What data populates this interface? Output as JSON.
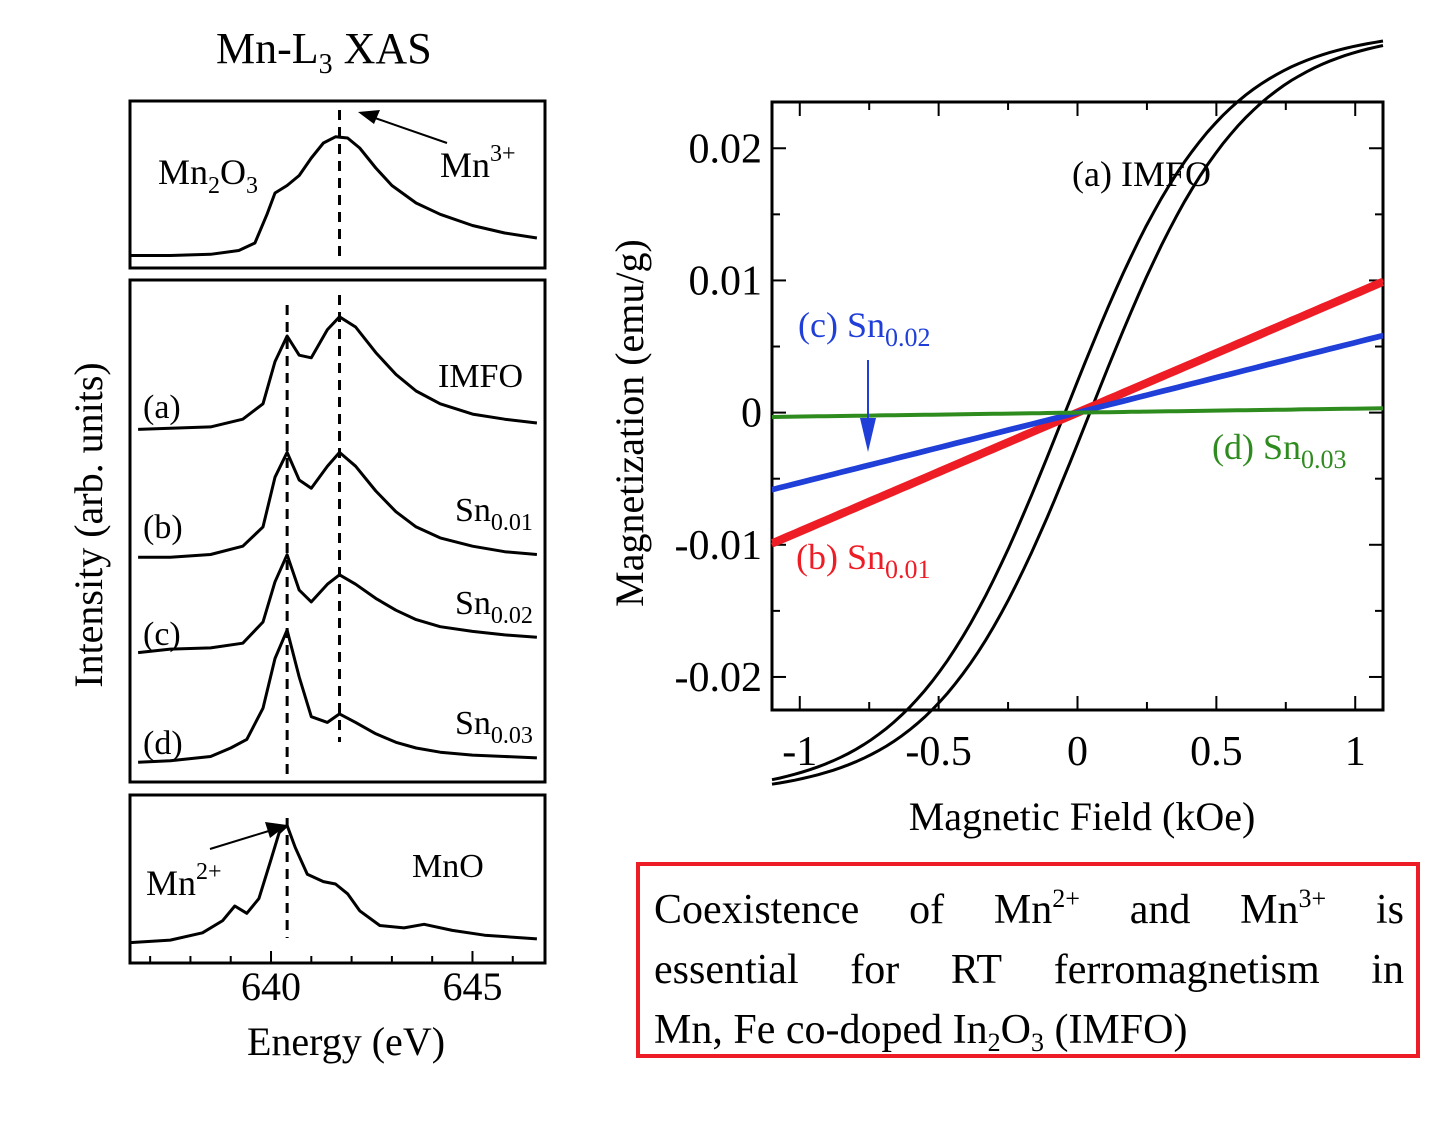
{
  "chart_data": [
    {
      "type": "line",
      "title": "Mn-L₃ XAS",
      "xlabel": "Energy (eV)",
      "ylabel": "Intensity (arb. units)",
      "xlim": [
        636.5,
        646.8
      ],
      "xticks": [
        "640",
        "645"
      ],
      "panels": [
        {
          "name": "Mn2O3 reference",
          "label": "Mn₂O₃",
          "annotation": "Mn³⁺",
          "peak_marker_eV": 641.7,
          "series": [
            {
              "name": "Mn₂O₃",
              "x": [
                636.5,
                637.5,
                638.5,
                639.2,
                639.6,
                639.9,
                640.1,
                640.4,
                640.7,
                641.0,
                641.3,
                641.6,
                641.9,
                642.2,
                642.6,
                643.0,
                643.6,
                644.2,
                645.0,
                645.8,
                646.6
              ],
              "y": [
                0.02,
                0.02,
                0.03,
                0.06,
                0.12,
                0.35,
                0.52,
                0.58,
                0.66,
                0.8,
                0.92,
                0.97,
                0.96,
                0.88,
                0.72,
                0.58,
                0.44,
                0.35,
                0.26,
                0.2,
                0.16
              ]
            }
          ]
        },
        {
          "name": "Samples",
          "dashed_markers_eV": [
            640.4,
            641.7
          ],
          "series": [
            {
              "name": "IMFO",
              "tag": "(a)",
              "x": [
                636.7,
                637.5,
                638.5,
                639.3,
                639.8,
                640.1,
                640.4,
                640.7,
                641.0,
                641.4,
                641.7,
                642.1,
                642.6,
                643.1,
                643.6,
                644.2,
                645.0,
                645.8,
                646.6
              ],
              "y": [
                0.02,
                0.03,
                0.04,
                0.1,
                0.22,
                0.55,
                0.75,
                0.6,
                0.58,
                0.8,
                0.9,
                0.82,
                0.62,
                0.45,
                0.32,
                0.22,
                0.14,
                0.1,
                0.07
              ]
            },
            {
              "name": "Sn₀.₀₁",
              "tag": "(b)",
              "x": [
                636.7,
                637.5,
                638.5,
                639.3,
                639.8,
                640.1,
                640.4,
                640.7,
                641.0,
                641.4,
                641.7,
                642.1,
                642.6,
                643.1,
                643.6,
                644.2,
                645.0,
                645.8,
                646.6
              ],
              "y": [
                0.02,
                0.02,
                0.04,
                0.1,
                0.24,
                0.6,
                0.78,
                0.58,
                0.52,
                0.68,
                0.78,
                0.68,
                0.5,
                0.35,
                0.24,
                0.16,
                0.1,
                0.06,
                0.04
              ]
            },
            {
              "name": "Sn₀.₀₂",
              "tag": "(c)",
              "x": [
                636.7,
                637.5,
                638.5,
                639.3,
                639.8,
                640.1,
                640.4,
                640.7,
                641.0,
                641.4,
                641.7,
                642.1,
                642.6,
                643.1,
                643.6,
                644.2,
                645.0,
                645.8,
                646.6
              ],
              "y": [
                0.02,
                0.05,
                0.06,
                0.1,
                0.28,
                0.62,
                0.85,
                0.55,
                0.45,
                0.6,
                0.68,
                0.6,
                0.48,
                0.38,
                0.3,
                0.24,
                0.2,
                0.17,
                0.15
              ]
            },
            {
              "name": "Sn₀.₀₃",
              "tag": "(d)",
              "x": [
                636.7,
                637.5,
                638.5,
                639.0,
                639.4,
                639.8,
                640.1,
                640.4,
                640.7,
                641.0,
                641.4,
                641.7,
                642.1,
                642.6,
                643.1,
                643.6,
                644.2,
                645.0,
                645.8,
                646.6
              ],
              "y": [
                0.02,
                0.03,
                0.06,
                0.12,
                0.18,
                0.4,
                0.75,
                0.95,
                0.62,
                0.34,
                0.3,
                0.36,
                0.3,
                0.22,
                0.16,
                0.12,
                0.09,
                0.07,
                0.06,
                0.05
              ]
            }
          ]
        },
        {
          "name": "MnO reference",
          "label": "MnO",
          "annotation": "Mn²⁺",
          "peak_marker_eV": 640.4,
          "series": [
            {
              "name": "MnO",
              "x": [
                636.5,
                637.5,
                638.3,
                638.8,
                639.1,
                639.4,
                639.7,
                640.0,
                640.2,
                640.4,
                640.6,
                640.9,
                641.3,
                641.6,
                641.9,
                642.2,
                642.7,
                643.3,
                643.8,
                644.5,
                645.3,
                646.6
              ],
              "y": [
                0.02,
                0.04,
                0.1,
                0.2,
                0.32,
                0.26,
                0.38,
                0.7,
                0.92,
                0.98,
                0.8,
                0.58,
                0.52,
                0.5,
                0.42,
                0.28,
                0.16,
                0.14,
                0.17,
                0.12,
                0.08,
                0.05
              ]
            }
          ]
        }
      ]
    },
    {
      "type": "line",
      "title": "",
      "xlabel": "Magnetic Field (kOe)",
      "ylabel": "Magnetization (emu/g)",
      "xlim": [
        -1.1,
        1.1
      ],
      "ylim": [
        -0.0225,
        0.0235
      ],
      "xticks": [
        "-1",
        "-0.5",
        "0",
        "0.5",
        "1"
      ],
      "yticks": [
        "0.02",
        "0.01",
        "0",
        "-0.01",
        "-0.02"
      ],
      "grid": false,
      "series": [
        {
          "name": "(a) IMFO",
          "color": "#000000",
          "loop": true,
          "saturation": 0.029,
          "scale": 0.55,
          "coercive": 0.045
        },
        {
          "name": "(b) Sn₀.₀₁",
          "color": "#ee1c25",
          "loop": true,
          "slope": 0.009,
          "coercive": 0.015
        },
        {
          "name": "(c) Sn₀.₀₂",
          "color": "#1f3fd8",
          "loop": true,
          "slope": 0.0053,
          "coercive": 0.02
        },
        {
          "name": "(d) Sn₀.₀₃",
          "color": "#2e8b1e",
          "loop": false,
          "slope": 0.0003
        }
      ],
      "labels": {
        "a": "(a) IMFO",
        "b": "(b) Sn",
        "b_sub": "0.01",
        "c": "(c) Sn",
        "c_sub": "0.02",
        "d": "(d) Sn",
        "d_sub": "0.03"
      }
    }
  ],
  "left_labels": {
    "title_main": "Mn-L",
    "title_sub": "3",
    "title_rest": " XAS",
    "mn2o3_main": "Mn",
    "mn2o3_sub1": "2",
    "mn2o3_mid": "O",
    "mn2o3_sub2": "3",
    "mn3_main": "Mn",
    "mn3_sup": "3+",
    "imfo": "IMFO",
    "sn": "Sn",
    "sn01": "0.01",
    "sn02": "0.02",
    "sn03": "0.03",
    "tag_a": "(a)",
    "tag_b": "(b)",
    "tag_c": "(c)",
    "tag_d": "(d)",
    "mn2_main": "Mn",
    "mn2_sup": "2+",
    "mno": "MnO"
  },
  "note": {
    "line1": [
      "Coexistence",
      "of",
      "Mn",
      "2+",
      "and",
      "Mn",
      "3+",
      "is"
    ],
    "line2": [
      "essential",
      "for",
      "RT",
      "ferromagnetism",
      "in"
    ],
    "line3_a": "Mn, Fe co-doped In",
    "line3_sub1": "2",
    "line3_b": "O",
    "line3_sub2": "3",
    "line3_c": " (IMFO)"
  }
}
